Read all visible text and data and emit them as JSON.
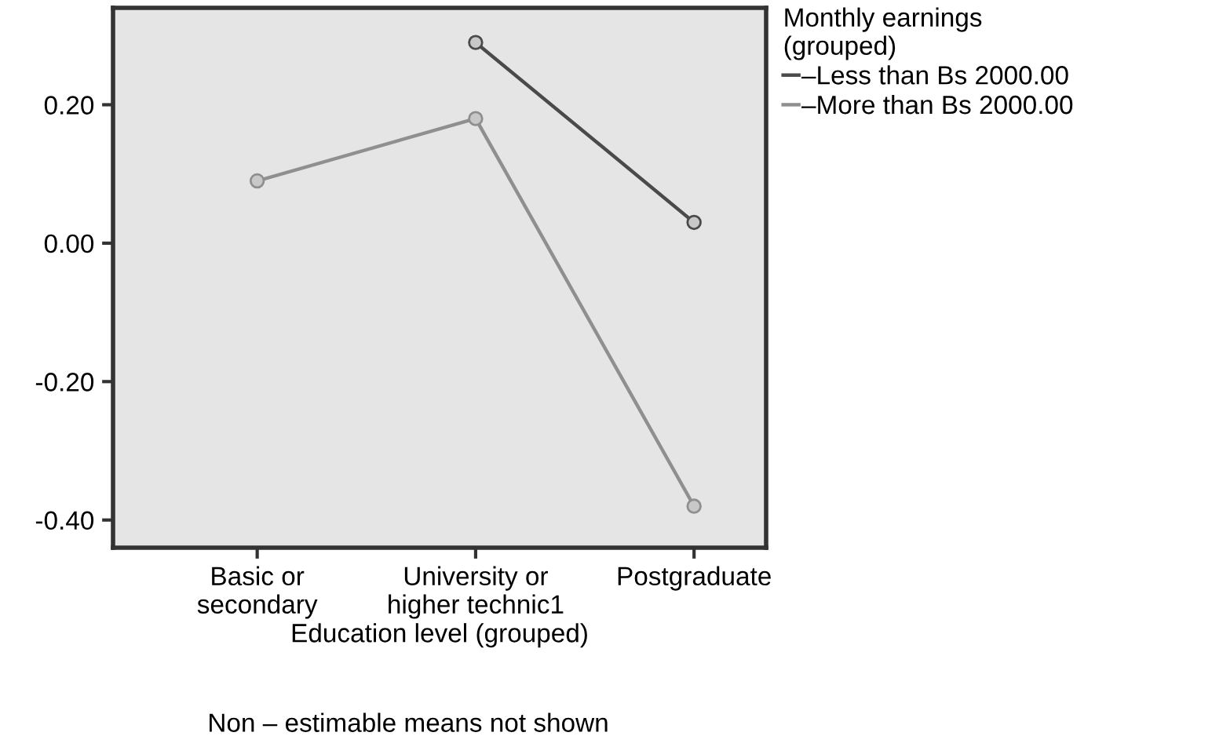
{
  "chart_data": {
    "type": "line",
    "xlabel": "Education level (grouped)",
    "legend_title": "Monthly earnings\n(grouped)",
    "categories": [
      "Basic or\nsecondary",
      "University or\nhigher technic1",
      "Postgraduate"
    ],
    "series": [
      {
        "name": "–Less than Bs 2000.00",
        "color": "#4a4a4a",
        "values": [
          null,
          0.29,
          0.03
        ]
      },
      {
        "name": "–More than Bs 2000.00",
        "color": "#8f8f8f",
        "values": [
          0.09,
          0.18,
          -0.38
        ]
      }
    ],
    "ylim": [
      -0.44,
      0.34
    ],
    "yticks": [
      {
        "value": 0.2,
        "label": "0.20"
      },
      {
        "value": 0,
        "label": "0.00"
      },
      {
        "value": -0.2,
        "label": "-0.20"
      },
      {
        "value": -0.4,
        "label": "-0.40"
      }
    ],
    "marker": "circle",
    "line_style": "solid",
    "grid": false,
    "legend": "top right",
    "annotations": [
      "Non – estimable means not shown"
    ]
  }
}
